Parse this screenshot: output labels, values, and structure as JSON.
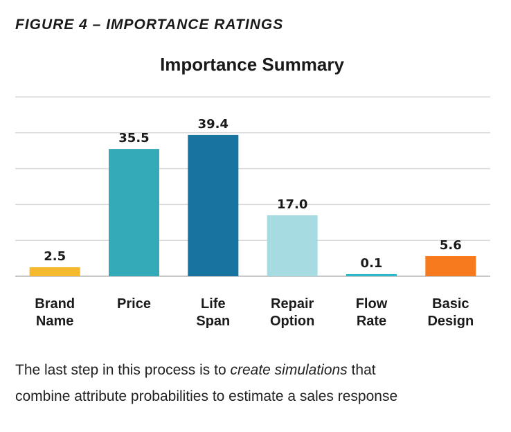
{
  "figure_label": "FIGURE 4 – IMPORTANCE RATINGS",
  "caption": {
    "line1_before": "The last step in this process is to ",
    "line1_emph": "create simulations",
    "line1_after": " that",
    "line2": "combine attribute probabilities to estimate a sales response"
  },
  "colors": {
    "gridline": "#d9d9d9",
    "axis": "#c8c8c8",
    "label_text": "#1a1a1a"
  },
  "chart_data": {
    "type": "bar",
    "title": "Importance Summary",
    "xlabel": "",
    "ylabel": "",
    "ylim": [
      0,
      50
    ],
    "grid": true,
    "legend": "none",
    "categories": [
      [
        "Brand",
        "Name"
      ],
      [
        "Price"
      ],
      [
        "Life",
        "Span"
      ],
      [
        "Repair",
        "Option"
      ],
      [
        "Flow",
        "Rate"
      ],
      [
        "Basic",
        "Design"
      ]
    ],
    "values": [
      2.5,
      35.5,
      39.4,
      17.0,
      0.1,
      5.6
    ],
    "value_labels": [
      "2.5",
      "35.5",
      "39.4",
      "17.0",
      "0.1",
      "5.6"
    ],
    "bar_colors": [
      "#f6b92d",
      "#34aab8",
      "#17739f",
      "#a7dbe2",
      "#2db8cc",
      "#f87a1f"
    ]
  }
}
